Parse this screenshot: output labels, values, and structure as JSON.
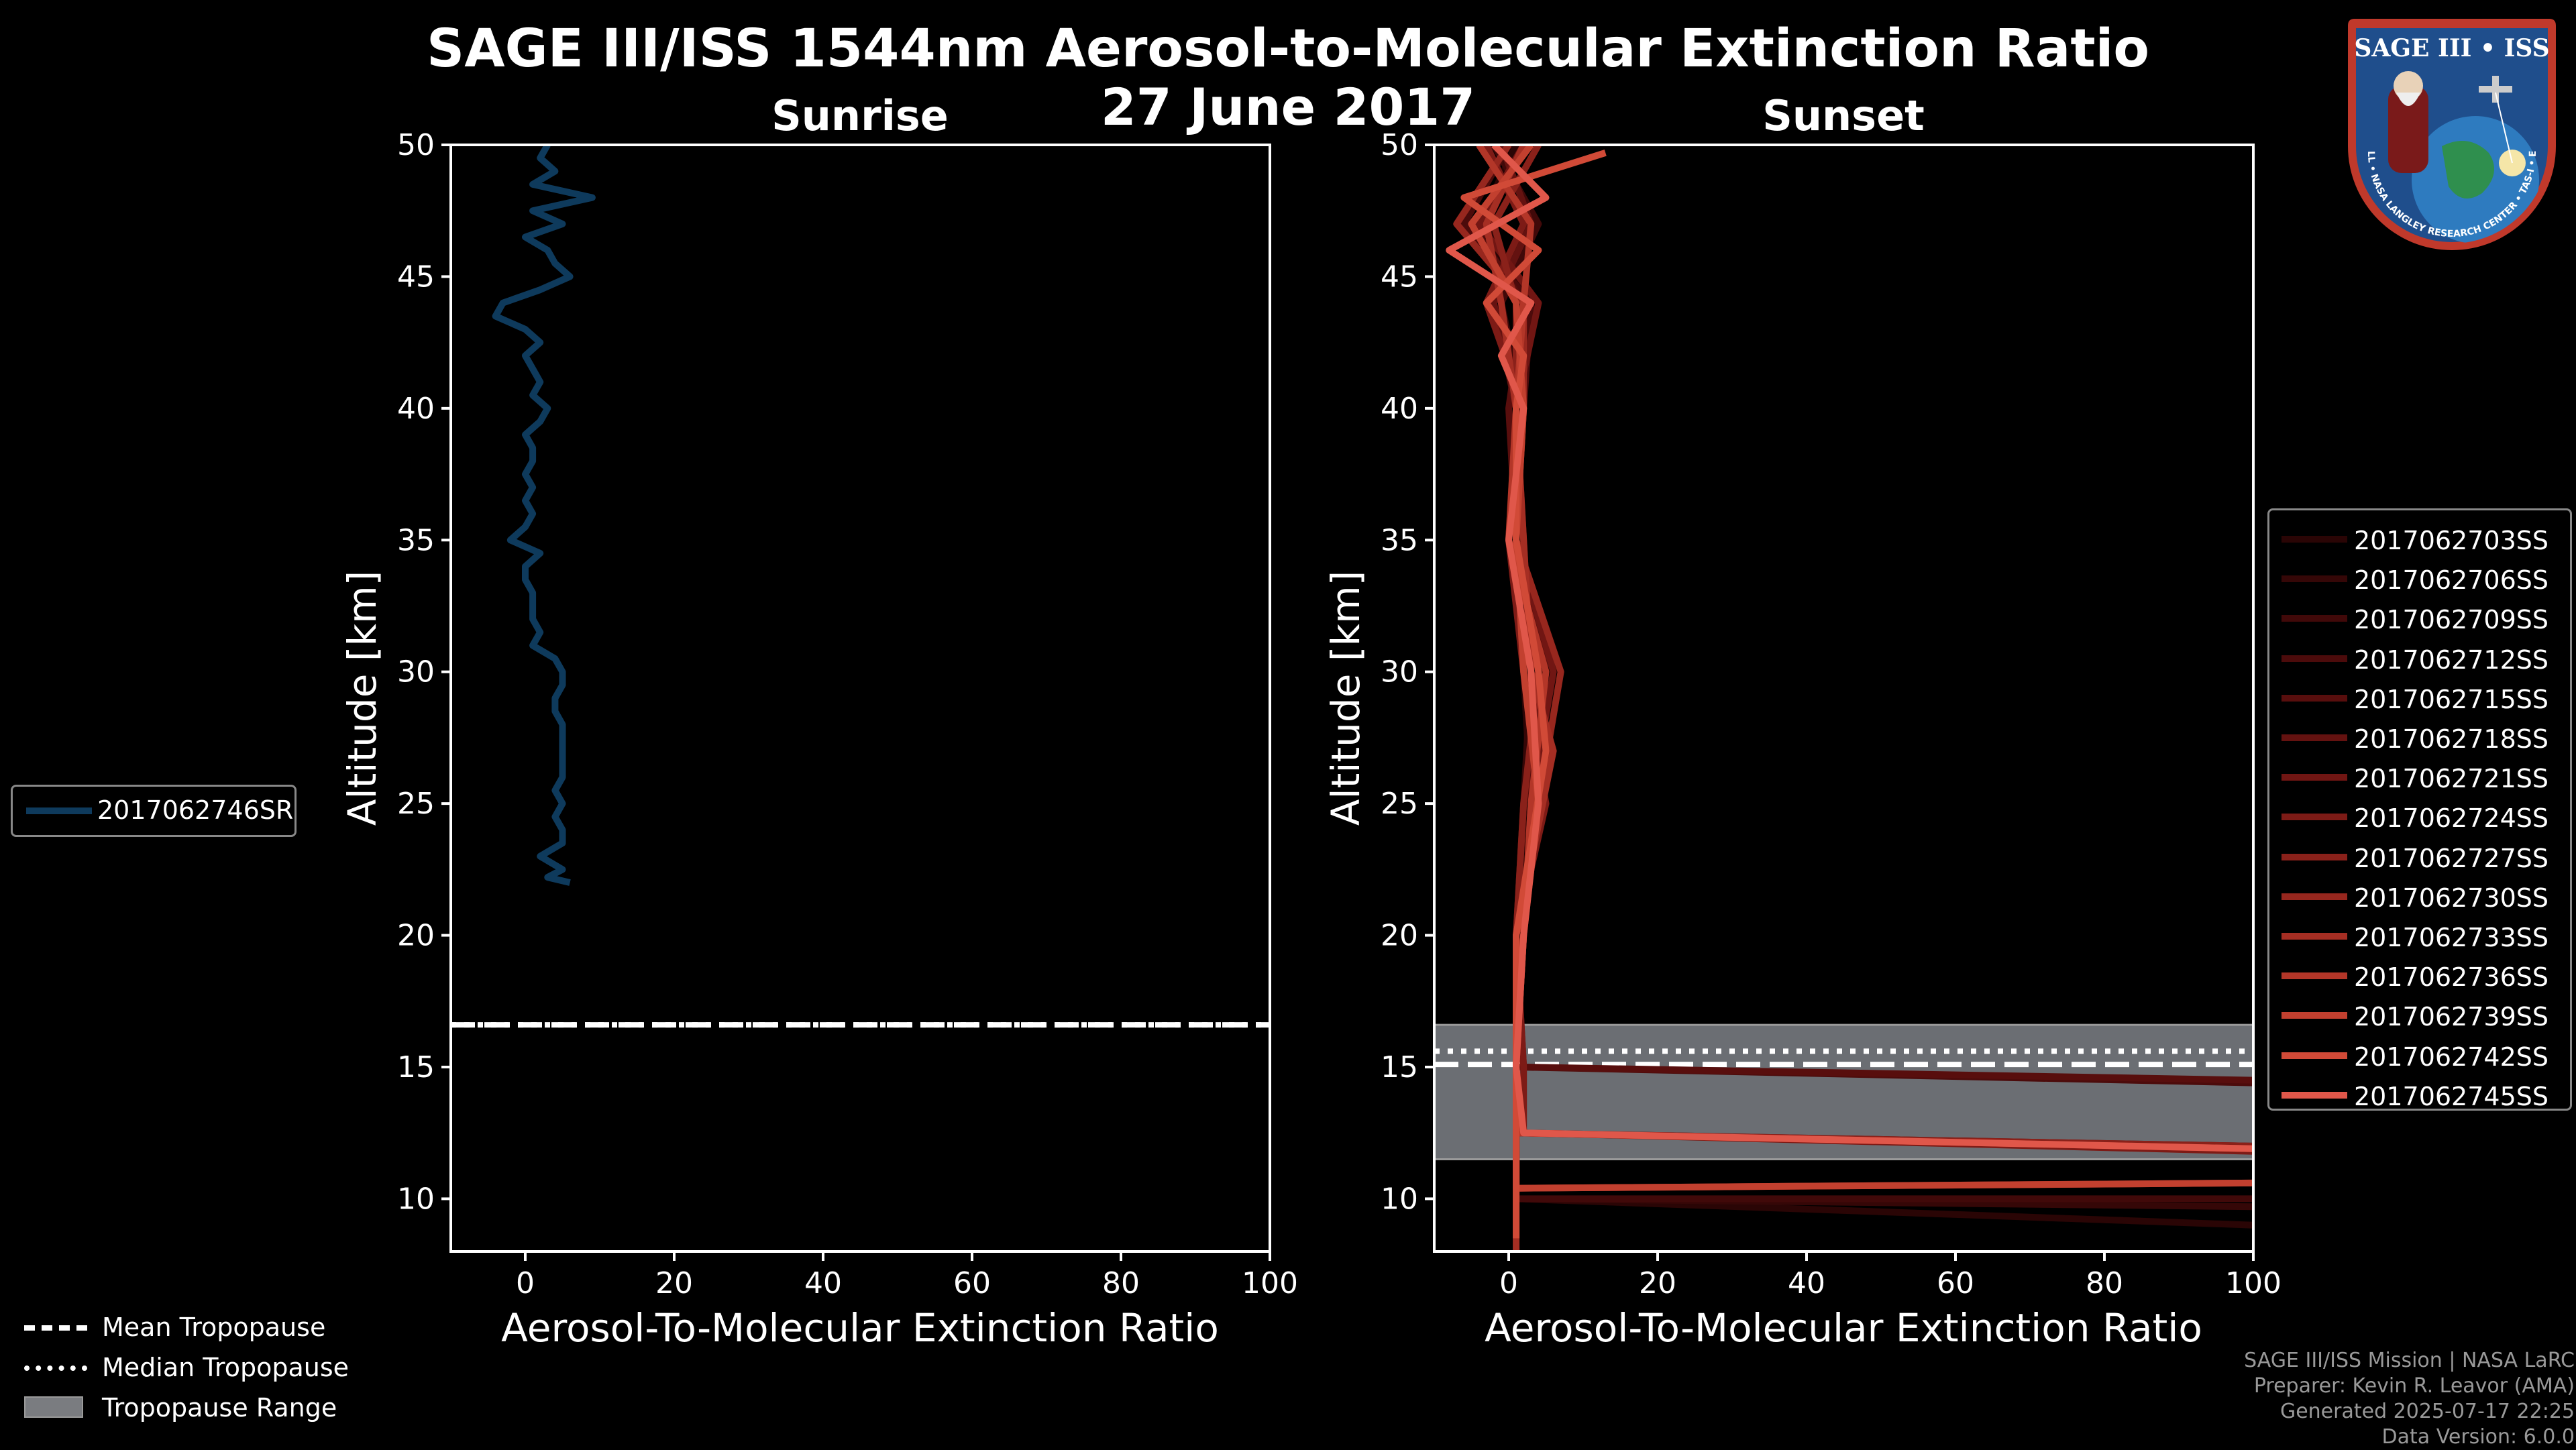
{
  "title": "SAGE III/ISS 1544nm Aerosol-to-Molecular Extinction Ratio",
  "date": "27 June 2017",
  "logo": {
    "text": "SAGE III • ISS",
    "ring_text": "BALL • NASA LANGLEY RESEARCH CENTER • TAS-I • ESA"
  },
  "tropopause_legend": [
    "Mean Tropopause",
    "Median Tropopause",
    "Tropopause Range"
  ],
  "credits": [
    "SAGE III/ISS Mission | NASA LaRC",
    "Preparer: Kevin R. Leavor (AMA)",
    "Generated 2025-07-17 22:25",
    "Data Version: 6.0.0"
  ],
  "chart_data": [
    {
      "type": "line",
      "title": "Sunrise",
      "xlabel": "Aerosol-To-Molecular Extinction Ratio",
      "ylabel": "Altitude [km]",
      "xlim": [
        -10,
        100
      ],
      "ylim": [
        8,
        50
      ],
      "xticks": [
        0,
        20,
        40,
        60,
        80,
        100
      ],
      "yticks": [
        10,
        15,
        20,
        25,
        30,
        35,
        40,
        45,
        50
      ],
      "tropopause": {
        "mean": 16.6,
        "median": 16.6,
        "range": [
          16.6,
          16.6
        ]
      },
      "series": [
        {
          "name": "2017062746SR",
          "color": "#0e3a5c",
          "points": [
            [
              3,
              50
            ],
            [
              2,
              49.5
            ],
            [
              4,
              49
            ],
            [
              1,
              48.5
            ],
            [
              9,
              48
            ],
            [
              1,
              47.5
            ],
            [
              5,
              47
            ],
            [
              0,
              46.5
            ],
            [
              3,
              46
            ],
            [
              4,
              45.5
            ],
            [
              6,
              45
            ],
            [
              2,
              44.5
            ],
            [
              -3,
              44
            ],
            [
              -4,
              43.5
            ],
            [
              0,
              43
            ],
            [
              2,
              42.5
            ],
            [
              0,
              42
            ],
            [
              1,
              41.5
            ],
            [
              2,
              41
            ],
            [
              1,
              40.5
            ],
            [
              3,
              40
            ],
            [
              2,
              39.5
            ],
            [
              0,
              39
            ],
            [
              1,
              38.5
            ],
            [
              1,
              38
            ],
            [
              0,
              37.5
            ],
            [
              1,
              37
            ],
            [
              0,
              36.5
            ],
            [
              1,
              36
            ],
            [
              0,
              35.5
            ],
            [
              -2,
              35
            ],
            [
              2,
              34.5
            ],
            [
              0,
              34
            ],
            [
              0,
              33.5
            ],
            [
              1,
              33
            ],
            [
              1,
              32.5
            ],
            [
              1,
              32
            ],
            [
              2,
              31.5
            ],
            [
              1,
              31
            ],
            [
              4,
              30.5
            ],
            [
              5,
              30
            ],
            [
              5,
              29.5
            ],
            [
              4,
              29
            ],
            [
              4,
              28.5
            ],
            [
              5,
              28
            ],
            [
              5,
              27.5
            ],
            [
              5,
              27
            ],
            [
              5,
              26.5
            ],
            [
              5,
              26
            ],
            [
              4,
              25.5
            ],
            [
              5,
              25
            ],
            [
              4,
              24.5
            ],
            [
              5,
              24
            ],
            [
              5,
              23.5
            ],
            [
              2,
              23
            ],
            [
              5,
              22.5
            ],
            [
              3,
              22.2
            ],
            [
              6,
              22
            ]
          ]
        }
      ]
    },
    {
      "type": "line",
      "title": "Sunset",
      "xlabel": "Aerosol-To-Molecular Extinction Ratio",
      "ylabel": "Altitude [km]",
      "xlim": [
        -10,
        100
      ],
      "ylim": [
        8,
        50
      ],
      "xticks": [
        0,
        20,
        40,
        60,
        80,
        100
      ],
      "yticks": [
        10,
        15,
        20,
        25,
        30,
        35,
        40,
        45,
        50
      ],
      "tropopause": {
        "mean": 15.1,
        "median": 15.6,
        "range": [
          11.5,
          16.6
        ]
      },
      "series": [
        {
          "name": "2017062703SS",
          "color": "#2a0505",
          "points": [
            [
              1,
              50
            ],
            [
              -4,
              47
            ],
            [
              2,
              44
            ],
            [
              1,
              40
            ],
            [
              0,
              35
            ],
            [
              2,
              30
            ],
            [
              3,
              25
            ],
            [
              1,
              20
            ],
            [
              1,
              15
            ],
            [
              1,
              12
            ],
            [
              1,
              10
            ],
            [
              100,
              9.0
            ]
          ]
        },
        {
          "name": "2017062706SS",
          "color": "#350707",
          "points": [
            [
              2,
              50
            ],
            [
              -3,
              47
            ],
            [
              3,
              44
            ],
            [
              1,
              40
            ],
            [
              1,
              35
            ],
            [
              3,
              30
            ],
            [
              2,
              25
            ],
            [
              1,
              20
            ],
            [
              1,
              15
            ],
            [
              1,
              12
            ],
            [
              1,
              10
            ],
            [
              100,
              9.7
            ]
          ]
        },
        {
          "name": "2017062709SS",
          "color": "#410909",
          "points": [
            [
              -2,
              50
            ],
            [
              4,
              47
            ],
            [
              -1,
              44
            ],
            [
              2,
              40
            ],
            [
              0,
              35
            ],
            [
              4,
              30
            ],
            [
              3,
              25
            ],
            [
              2,
              20
            ],
            [
              1,
              15
            ],
            [
              1,
              13
            ],
            [
              1,
              10
            ],
            [
              100,
              10.0
            ]
          ]
        },
        {
          "name": "2017062712SS",
          "color": "#4c0b0b",
          "points": [
            [
              0,
              50
            ],
            [
              -6,
              47
            ],
            [
              3,
              44
            ],
            [
              2,
              40
            ],
            [
              1,
              35
            ],
            [
              2,
              30
            ],
            [
              4,
              25
            ],
            [
              1,
              20
            ],
            [
              1,
              15
            ],
            [
              100,
              14.4
            ]
          ]
        },
        {
          "name": "2017062715SS",
          "color": "#580e0d",
          "points": [
            [
              3,
              50
            ],
            [
              -5,
              47
            ],
            [
              2,
              44
            ],
            [
              0,
              40
            ],
            [
              1,
              35
            ],
            [
              5,
              30
            ],
            [
              2,
              25
            ],
            [
              1,
              20
            ],
            [
              2,
              15
            ],
            [
              100,
              14.5
            ]
          ]
        },
        {
          "name": "2017062718SS",
          "color": "#641210",
          "points": [
            [
              -1,
              50
            ],
            [
              3,
              47
            ],
            [
              -2,
              44
            ],
            [
              1,
              40
            ],
            [
              2,
              35
            ],
            [
              3,
              30
            ],
            [
              4,
              25
            ],
            [
              1,
              20
            ],
            [
              1,
              15
            ],
            [
              1,
              12.5
            ],
            [
              100,
              12.0
            ]
          ]
        },
        {
          "name": "2017062721SS",
          "color": "#711613",
          "points": [
            [
              2,
              50
            ],
            [
              -4,
              47
            ],
            [
              4,
              44
            ],
            [
              1,
              40
            ],
            [
              1,
              35
            ],
            [
              6,
              30
            ],
            [
              3,
              25
            ],
            [
              2,
              20
            ],
            [
              1,
              15
            ],
            [
              1,
              12.5
            ],
            [
              100,
              11.9
            ]
          ]
        },
        {
          "name": "2017062724SS",
          "color": "#7d1b16",
          "points": [
            [
              -3,
              50
            ],
            [
              2,
              47
            ],
            [
              -3,
              44
            ],
            [
              2,
              40
            ],
            [
              0,
              35
            ],
            [
              2,
              30
            ],
            [
              5,
              25
            ],
            [
              1,
              20
            ],
            [
              2,
              15
            ],
            [
              2,
              12.5
            ],
            [
              100,
              11.8
            ]
          ]
        },
        {
          "name": "2017062727SS",
          "color": "#8a211a",
          "points": [
            [
              4,
              50
            ],
            [
              -2,
              47
            ],
            [
              1,
              44
            ],
            [
              1,
              40
            ],
            [
              1,
              35
            ],
            [
              4,
              30
            ],
            [
              2,
              25
            ],
            [
              1,
              20
            ],
            [
              1,
              15
            ],
            [
              1,
              12.5
            ],
            [
              100,
              12.0
            ]
          ]
        },
        {
          "name": "2017062730SS",
          "color": "#97271e",
          "points": [
            [
              0,
              50
            ],
            [
              -7,
              47
            ],
            [
              2,
              44
            ],
            [
              2,
              40
            ],
            [
              1,
              35
            ],
            [
              7,
              30
            ],
            [
              4,
              25
            ],
            [
              2,
              20
            ],
            [
              1,
              15
            ],
            [
              1,
              10.4
            ],
            [
              100,
              10.6
            ]
          ]
        },
        {
          "name": "2017062733SS",
          "color": "#a52e23",
          "points": [
            [
              2,
              50
            ],
            [
              -3,
              47
            ],
            [
              -1,
              44
            ],
            [
              1,
              40
            ],
            [
              2,
              35
            ],
            [
              3,
              30
            ],
            [
              6,
              27
            ],
            [
              1,
              20
            ],
            [
              1,
              15
            ],
            [
              1,
              12
            ],
            [
              1,
              10
            ],
            [
              1,
              8
            ]
          ]
        },
        {
          "name": "2017062736SS",
          "color": "#b33628",
          "points": [
            [
              -4,
              50
            ],
            [
              3,
              47
            ],
            [
              2,
              44
            ],
            [
              1,
              40
            ],
            [
              0,
              35
            ],
            [
              5,
              30
            ],
            [
              3,
              25
            ],
            [
              2,
              20
            ],
            [
              1,
              15
            ],
            [
              1,
              12.5
            ],
            [
              100,
              11.9
            ]
          ]
        },
        {
          "name": "2017062739SS",
          "color": "#c2402f",
          "points": [
            [
              3,
              50
            ],
            [
              -5,
              47
            ],
            [
              1,
              44
            ],
            [
              2,
              40
            ],
            [
              1,
              35
            ],
            [
              2,
              30
            ],
            [
              4,
              25
            ],
            [
              1,
              20
            ],
            [
              1,
              15
            ],
            [
              1,
              10.4
            ],
            [
              100,
              10.6
            ]
          ]
        },
        {
          "name": "2017062742SS",
          "color": "#d14a37",
          "points": [
            [
              13,
              49.7
            ],
            [
              -6,
              48
            ],
            [
              4,
              46
            ],
            [
              -3,
              44
            ],
            [
              2,
              42
            ],
            [
              1,
              40
            ],
            [
              1,
              35
            ],
            [
              4,
              30
            ],
            [
              5,
              27
            ],
            [
              1,
              20
            ],
            [
              1,
              15
            ],
            [
              1,
              12
            ],
            [
              1,
              10
            ],
            [
              1,
              8.5
            ]
          ]
        },
        {
          "name": "2017062745SS",
          "color": "#e0574a",
          "points": [
            [
              -2,
              50
            ],
            [
              5,
              48
            ],
            [
              -8,
              46
            ],
            [
              3,
              44
            ],
            [
              -1,
              42
            ],
            [
              2,
              40
            ],
            [
              0,
              35
            ],
            [
              3,
              30
            ],
            [
              4,
              25
            ],
            [
              2,
              20
            ],
            [
              1,
              15
            ],
            [
              2,
              12.5
            ],
            [
              100,
              11.9
            ]
          ]
        }
      ]
    }
  ]
}
